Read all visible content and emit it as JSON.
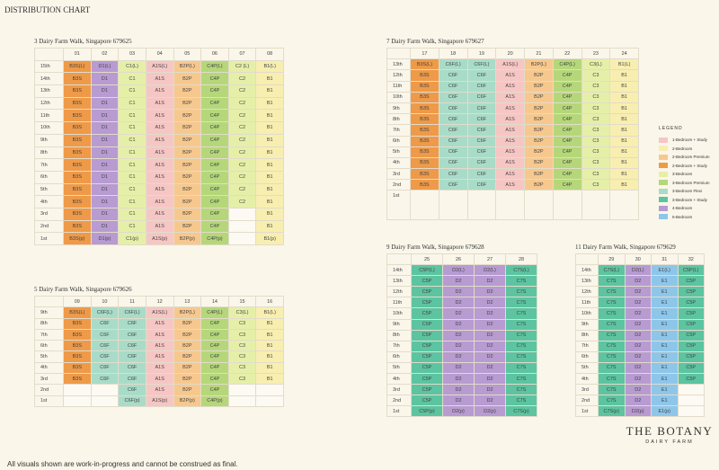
{
  "title": "DISTRIBUTION CHART",
  "legend": {
    "title": "LEGEND",
    "items": [
      {
        "label": "1-Bedroom + Study",
        "color": "#f6c6c4"
      },
      {
        "label": "2-Bedroom",
        "color": "#f8eeb0"
      },
      {
        "label": "2-Bedroom Premium",
        "color": "#f7c88e"
      },
      {
        "label": "2-Bedroom + Study",
        "color": "#ee9a48"
      },
      {
        "label": "3-Bedroom",
        "color": "#e6efa8"
      },
      {
        "label": "3-Bedroom Premium",
        "color": "#b5d77a"
      },
      {
        "label": "3-Bedroom Flexi",
        "color": "#a8dcc8"
      },
      {
        "label": "3-Bedroom + Study",
        "color": "#5cc4a0"
      },
      {
        "label": "4-Bedroom",
        "color": "#b79bd1"
      },
      {
        "label": "5-Bedroom",
        "color": "#8ec6ea"
      }
    ]
  },
  "blocks": [
    {
      "title": "3 Dairy Farm Walk, Singapore 679625",
      "floors": [
        "15th",
        "14th",
        "13th",
        "12th",
        "11th",
        "10th",
        "9th",
        "8th",
        "7th",
        "6th",
        "5th",
        "4th",
        "3rd",
        "2nd",
        "1st"
      ],
      "columns": [
        {
          "label": "01",
          "color": "#ee9a48",
          "cells": [
            "B3S(L)",
            "B3S",
            "B3S",
            "B3S",
            "B3S",
            "B3S",
            "B3S",
            "B3S",
            "B3S",
            "B3S",
            "B3S",
            "B3S",
            "B3S",
            "B3S",
            "B3S(p)"
          ]
        },
        {
          "label": "02",
          "color": "#b79bd1",
          "cells": [
            "D1(L)",
            "D1",
            "D1",
            "D1",
            "D1",
            "D1",
            "D1",
            "D1",
            "D1",
            "D1",
            "D1",
            "D1",
            "D1",
            "D1",
            "D1(p)"
          ]
        },
        {
          "label": "03",
          "color": "#e6efa8",
          "cells": [
            "C1(L)",
            "C1",
            "C1",
            "C1",
            "C1",
            "C1",
            "C1",
            "C1",
            "C1",
            "C1",
            "C1",
            "C1",
            "C1",
            "C1",
            "C1(p)"
          ]
        },
        {
          "label": "04",
          "color": "#f6c6c4",
          "cells": [
            "A1S(L)",
            "A1S",
            "A1S",
            "A1S",
            "A1S",
            "A1S",
            "A1S",
            "A1S",
            "A1S",
            "A1S",
            "A1S",
            "A1S",
            "A1S",
            "A1S",
            "A1S(p)"
          ]
        },
        {
          "label": "05",
          "color": "#f7c88e",
          "cells": [
            "B2P(L)",
            "B2P",
            "B2P",
            "B2P",
            "B2P",
            "B2P",
            "B2P",
            "B2P",
            "B2P",
            "B2P",
            "B2P",
            "B2P",
            "B2P",
            "B2P",
            "B2P(p)"
          ]
        },
        {
          "label": "06",
          "color": "#b5d77a",
          "cells": [
            "C4P(L)",
            "C4P",
            "C4P",
            "C4P",
            "C4P",
            "C4P",
            "C4P",
            "C4P",
            "C4P",
            "C4P",
            "C4P",
            "C4P",
            "C4P",
            "C4P",
            "C4P(p)"
          ]
        },
        {
          "label": "07",
          "color": "#e6efa8",
          "cells": [
            "C2 (L)",
            "C2",
            "C2",
            "C2",
            "C2",
            "C2",
            "C2",
            "C2",
            "C2",
            "C2",
            "C2",
            "C2",
            null,
            null,
            null
          ]
        },
        {
          "label": "08",
          "color": "#f8eeb0",
          "cells": [
            "B1(L)",
            "B1",
            "B1",
            "B1",
            "B1",
            "B1",
            "B1",
            "B1",
            "B1",
            "B1",
            "B1",
            "B1",
            "B1",
            "B1",
            "B1(p)"
          ]
        }
      ]
    },
    {
      "title": "7 Dairy Farm Walk, Singapore 679627",
      "floors": [
        "13th",
        "12th",
        "11th",
        "10th",
        "9th",
        "8th",
        "7th",
        "6th",
        "5th",
        "4th",
        "3rd",
        "2nd",
        "1st"
      ],
      "columns": [
        {
          "label": "17",
          "color": "#ee9a48",
          "cells": [
            "B3S(L)",
            "B3S",
            "B3S",
            "B3S",
            "B3S",
            "B3S",
            "B3S",
            "B3S",
            "B3S",
            "B3S",
            "B3S",
            "B3S",
            null
          ]
        },
        {
          "label": "18",
          "color": "#a8dcc8",
          "cells": [
            "C6F(L)",
            "C6F",
            "C6F",
            "C6F",
            "C6F",
            "C6F",
            "C6F",
            "C6F",
            "C6F",
            "C6F",
            "C6F",
            "C6F",
            null
          ]
        },
        {
          "label": "19",
          "color": "#a8dcc8",
          "cells": [
            "C6F(L)",
            "C6F",
            "C6F",
            "C6F",
            "C6F",
            "C6F",
            "C6F",
            "C6F",
            "C6F",
            "C6F",
            "C6F",
            "C6F",
            null
          ]
        },
        {
          "label": "20",
          "color": "#f6c6c4",
          "cells": [
            "A1S(L)",
            "A1S",
            "A1S",
            "A1S",
            "A1S",
            "A1S",
            "A1S",
            "A1S",
            "A1S",
            "A1S",
            "A1S",
            "A1S",
            null
          ]
        },
        {
          "label": "21",
          "color": "#f7c88e",
          "cells": [
            "B2P(L)",
            "B2P",
            "B2P",
            "B2P",
            "B2P",
            "B2P",
            "B2P",
            "B2P",
            "B2P",
            "B2P",
            "B2P",
            "B2P",
            null
          ]
        },
        {
          "label": "22",
          "color": "#b5d77a",
          "cells": [
            "C4P(L)",
            "C4P",
            "C4P",
            "C4P",
            "C4P",
            "C4P",
            "C4P",
            "C4P",
            "C4P",
            "C4P",
            "C4P",
            "C4P",
            null
          ]
        },
        {
          "label": "23",
          "color": "#e6efa8",
          "cells": [
            "C3(L)",
            "C3",
            "C3",
            "C3",
            "C3",
            "C3",
            "C3",
            "C3",
            "C3",
            "C3",
            "C3",
            "C3",
            null
          ]
        },
        {
          "label": "24",
          "color": "#f8eeb0",
          "cells": [
            "B1(L)",
            "B1",
            "B1",
            "B1",
            "B1",
            "B1",
            "B1",
            "B1",
            "B1",
            "B1",
            "B1",
            "B1",
            null
          ]
        }
      ]
    },
    {
      "title": "5 Dairy Farm Walk, Singapore 679626",
      "floors": [
        "9th",
        "8th",
        "7th",
        "6th",
        "5th",
        "4th",
        "3rd",
        "2nd",
        "1st"
      ],
      "columns": [
        {
          "label": "09",
          "color": "#ee9a48",
          "cells": [
            "B3S(L)",
            "B3S",
            "B3S",
            "B3S",
            "B3S",
            "B3S",
            "B3S",
            null,
            null
          ]
        },
        {
          "label": "10",
          "color": "#a8dcc8",
          "cells": [
            "C6F(L)",
            "C6F",
            "C6F",
            "C6F",
            "C6F",
            "C6F",
            "C6F",
            null,
            null
          ]
        },
        {
          "label": "11",
          "color": "#a8dcc8",
          "cells": [
            "C6F(L)",
            "C6F",
            "C6F",
            "C6F",
            "C6F",
            "C6F",
            "C6F",
            "C6F",
            "C6F(p)"
          ]
        },
        {
          "label": "12",
          "color": "#f6c6c4",
          "cells": [
            "A1S(L)",
            "A1S",
            "A1S",
            "A1S",
            "A1S",
            "A1S",
            "A1S",
            "A1S",
            "A1S(p)"
          ]
        },
        {
          "label": "13",
          "color": "#f7c88e",
          "cells": [
            "B2P(L)",
            "B2P",
            "B2P",
            "B2P",
            "B2P",
            "B2P",
            "B2P",
            "B2P",
            "B2P(p)"
          ]
        },
        {
          "label": "14",
          "color": "#b5d77a",
          "cells": [
            "C4P(L)",
            "C4P",
            "C4P",
            "C4P",
            "C4P",
            "C4P",
            "C4P",
            "C4P",
            "C4P(p)"
          ]
        },
        {
          "label": "15",
          "color": "#e6efa8",
          "cells": [
            "C3(L)",
            "C3",
            "C3",
            "C3",
            "C3",
            "C3",
            "C3",
            null,
            null
          ]
        },
        {
          "label": "16",
          "color": "#f8eeb0",
          "cells": [
            "B1(L)",
            "B1",
            "B1",
            "B1",
            "B1",
            "B1",
            "B1",
            null,
            null
          ]
        }
      ]
    },
    {
      "title": "9 Dairy Farm Walk, Singapore 679628",
      "floors": [
        "14th",
        "13th",
        "12th",
        "11th",
        "10th",
        "9th",
        "8th",
        "7th",
        "6th",
        "5th",
        "4th",
        "3rd",
        "2nd",
        "1st"
      ],
      "columns": [
        {
          "label": "25",
          "color": "#5cc4a0",
          "cells": [
            "C5P(L)",
            "C5P",
            "C5P",
            "C5P",
            "C5P",
            "C5P",
            "C5P",
            "C5P",
            "C5P",
            "C5P",
            "C5P",
            "C5P",
            "C5P",
            "C5P(p)"
          ]
        },
        {
          "label": "26",
          "color": "#b79bd1",
          "cells": [
            "D2(L)",
            "D2",
            "D2",
            "D2",
            "D2",
            "D2",
            "D2",
            "D2",
            "D2",
            "D2",
            "D2",
            "D2",
            "D2",
            "D2(p)"
          ]
        },
        {
          "label": "27",
          "color": "#b79bd1",
          "cells": [
            "D2(L)",
            "D2",
            "D2",
            "D2",
            "D2",
            "D2",
            "D2",
            "D2",
            "D2",
            "D2",
            "D2",
            "D2",
            "D2",
            "D2(p)"
          ]
        },
        {
          "label": "28",
          "color": "#5cc4a0",
          "cells": [
            "C7S(L)",
            "C7S",
            "C7S",
            "C7S",
            "C7S",
            "C7S",
            "C7S",
            "C7S",
            "C7S",
            "C7S",
            "C7S",
            "C7S",
            "C7S",
            "C7S(p)"
          ]
        }
      ]
    },
    {
      "title": "11 Dairy Farm Walk, Singapore 679629",
      "floors": [
        "14th",
        "13th",
        "12th",
        "11th",
        "10th",
        "9th",
        "8th",
        "7th",
        "6th",
        "5th",
        "4th",
        "3rd",
        "2nd",
        "1st"
      ],
      "columns": [
        {
          "label": "29",
          "color": "#5cc4a0",
          "cells": [
            "C7S(L)",
            "C7S",
            "C7S",
            "C7S",
            "C7S",
            "C7S",
            "C7S",
            "C7S",
            "C7S",
            "C7S",
            "C7S",
            "C7S",
            "C7S",
            "C7S(p)"
          ]
        },
        {
          "label": "30",
          "color": "#b79bd1",
          "cells": [
            "D2(L)",
            "D2",
            "D2",
            "D2",
            "D2",
            "D2",
            "D2",
            "D2",
            "D2",
            "D2",
            "D2",
            "D2",
            "D2",
            "D2(p)"
          ]
        },
        {
          "label": "31",
          "color": "#8ec6ea",
          "cells": [
            "E1(L)",
            "E1",
            "E1",
            "E1",
            "E1",
            "E1",
            "E1",
            "E1",
            "E1",
            "E1",
            "E1",
            "E1",
            "E1",
            "E1(p)"
          ]
        },
        {
          "label": "32",
          "color": "#5cc4a0",
          "cells": [
            "C5P(L)",
            "C5P",
            "C5P",
            "C5P",
            "C5P",
            "C5P",
            "C5P",
            "C5P",
            "C5P",
            "C5P",
            "C5P",
            null,
            null,
            null
          ]
        }
      ]
    }
  ],
  "brand": {
    "name": "THE BOTANY",
    "sub": "DAIRY FARM"
  },
  "footer": "All visuals shown are work-in-progress and cannot be construed as final."
}
